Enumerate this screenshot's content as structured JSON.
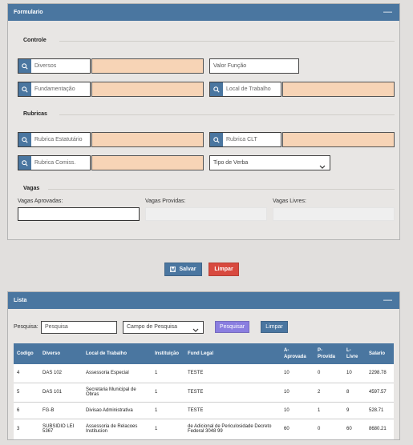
{
  "formulario": {
    "title": "Formulario",
    "collapse_symbol": "—",
    "controle": {
      "title": "Controle",
      "diversos_placeholder": "Diversos",
      "valor_funcao_placeholder": "Valor Função",
      "fundamentacao_placeholder": "Fundamentação",
      "local_trabalho_placeholder": "Local de Trabalho"
    },
    "rubricas": {
      "title": "Rubricas",
      "estatutario_placeholder": "Rubrica Estatutário",
      "clt_placeholder": "Rubrica CLT",
      "comiss_placeholder": "Rubrica Comiss.",
      "tipo_verba_value": "Tipo de Verba"
    },
    "vagas": {
      "title": "Vagas",
      "aprovadas_label": "Vagas Aprovadas:",
      "providas_label": "Vagas Providas:",
      "livres_label": "Vagas Livres:"
    }
  },
  "actions": {
    "salvar_label": "Salvar",
    "limpar_label": "Limpar"
  },
  "lista": {
    "title": "Lista",
    "collapse_symbol": "—",
    "pesquisa_label": "Pesquisa:",
    "pesquisa_placeholder": "Pesquisa",
    "campo_value": "Campo de Pesquisa",
    "pesquisar_label": "Pesquisar",
    "limpar_label": "Limpar",
    "columns": {
      "codigo": "Codigo",
      "diverso": "Diverso",
      "local": "Local de Trabalho",
      "instituicao": "Instituição",
      "fund_legal": "Fund Legal",
      "aprovada_a": "A-",
      "aprovada_b": "Aprovada",
      "provida_a": "P-",
      "provida_b": "Provida",
      "livre_a": "L-",
      "livre_b": "Livre",
      "salario": "Salario"
    },
    "rows": [
      {
        "codigo": "4",
        "diverso": "DAS 102",
        "local": "Assessoria Especial",
        "instituicao": "1",
        "fund_legal": "TESTE",
        "aprovada": "10",
        "provida": "0",
        "livre": "10",
        "salario": "2298.78"
      },
      {
        "codigo": "5",
        "diverso": "DAS 101",
        "local": "Secretaria Municipal de Obras",
        "instituicao": "1",
        "fund_legal": "TESTE",
        "aprovada": "10",
        "provida": "2",
        "livre": "8",
        "salario": "4597.57"
      },
      {
        "codigo": "6",
        "diverso": "FG-B",
        "local": "Divisao Administrativa",
        "instituicao": "1",
        "fund_legal": "TESTE",
        "aprovada": "10",
        "provida": "1",
        "livre": "9",
        "salario": "528.71"
      },
      {
        "codigo": "3",
        "diverso": "SUBSIDIO LEI 5367",
        "local": "Assessoria de Relacoes Institucion",
        "instituicao": "1",
        "fund_legal": "de Adicional de Periculosidade Decreto Federal 3048 99",
        "aprovada": "60",
        "provida": "0",
        "livre": "60",
        "salario": "8680.21"
      }
    ]
  }
}
